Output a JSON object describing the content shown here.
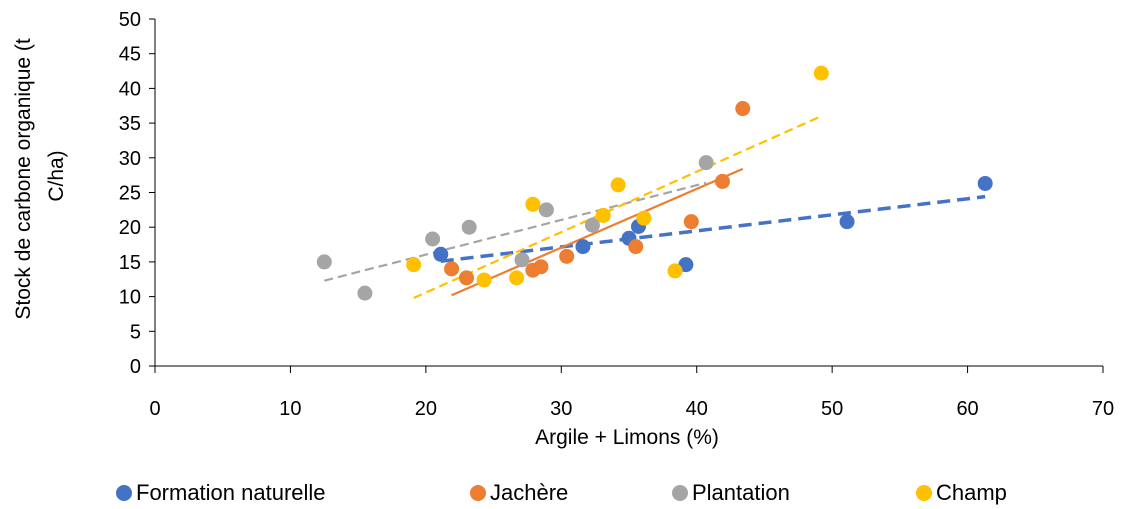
{
  "chart_data": {
    "type": "scatter",
    "xlabel": "Argile + Limons (%)",
    "ylabel_lines": [
      "Stock de carbone organique (t",
      "C/ha)"
    ],
    "xlim": [
      0,
      70
    ],
    "ylim": [
      0,
      50
    ],
    "xticks": [
      0,
      10,
      20,
      30,
      40,
      50,
      60,
      70
    ],
    "yticks": [
      0,
      5,
      10,
      15,
      20,
      25,
      30,
      35,
      40,
      45,
      50
    ],
    "grid": false,
    "legend_position": "bottom",
    "series": [
      {
        "name": "Formation naturelle",
        "color": "#4472C4",
        "points": [
          [
            21.1,
            16.1
          ],
          [
            31.6,
            17.2
          ],
          [
            35.0,
            18.4
          ],
          [
            35.7,
            20.1
          ],
          [
            39.2,
            14.6
          ],
          [
            51.1,
            20.8
          ],
          [
            61.3,
            26.3
          ]
        ],
        "trendline": {
          "x": [
            21.1,
            61.3
          ],
          "y": [
            15.1,
            24.4
          ],
          "style": "dashed",
          "width": "thick"
        }
      },
      {
        "name": "Jachère",
        "color": "#ED7D31",
        "points": [
          [
            21.9,
            14.0
          ],
          [
            23.0,
            12.7
          ],
          [
            27.9,
            13.8
          ],
          [
            28.5,
            14.3
          ],
          [
            30.4,
            15.8
          ],
          [
            35.5,
            17.2
          ],
          [
            39.6,
            20.8
          ],
          [
            41.9,
            26.6
          ],
          [
            43.4,
            37.1
          ]
        ],
        "trendline": {
          "x": [
            21.9,
            43.4
          ],
          "y": [
            10.2,
            28.4
          ],
          "style": "solid",
          "width": "thin"
        }
      },
      {
        "name": "Plantation",
        "color": "#A5A5A5",
        "points": [
          [
            12.5,
            15.0
          ],
          [
            15.5,
            10.5
          ],
          [
            20.5,
            18.3
          ],
          [
            23.2,
            20.0
          ],
          [
            27.1,
            15.3
          ],
          [
            28.9,
            22.5
          ],
          [
            32.3,
            20.3
          ],
          [
            40.7,
            29.3
          ]
        ],
        "trendline": {
          "x": [
            12.5,
            40.7
          ],
          "y": [
            12.3,
            26.4
          ],
          "style": "dashed",
          "width": "thin"
        }
      },
      {
        "name": "Champ",
        "color": "#FFC000",
        "points": [
          [
            19.1,
            14.6
          ],
          [
            24.3,
            12.4
          ],
          [
            26.7,
            12.7
          ],
          [
            27.9,
            23.3
          ],
          [
            33.1,
            21.7
          ],
          [
            34.2,
            26.1
          ],
          [
            36.1,
            21.3
          ],
          [
            38.4,
            13.7
          ],
          [
            49.2,
            42.2
          ]
        ],
        "trendline": {
          "x": [
            19.1,
            49.2
          ],
          "y": [
            9.8,
            36.0
          ],
          "style": "dashed",
          "width": "thin"
        }
      }
    ]
  }
}
